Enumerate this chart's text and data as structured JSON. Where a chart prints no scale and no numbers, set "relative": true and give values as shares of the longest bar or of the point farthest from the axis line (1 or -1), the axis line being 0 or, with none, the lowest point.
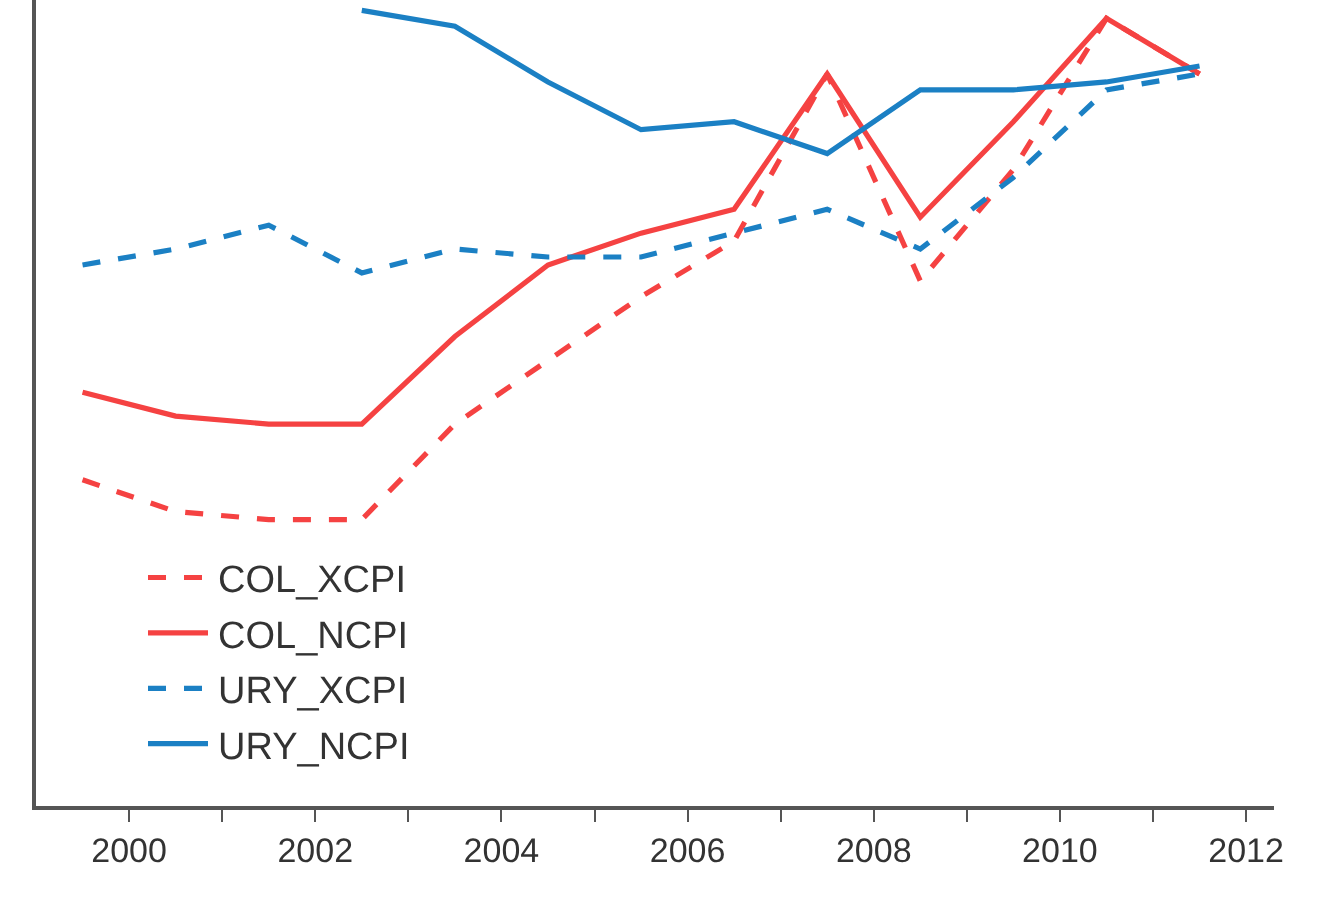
{
  "chart_data": {
    "type": "line",
    "relative": true,
    "x": [
      1999.5,
      2000.5,
      2001.5,
      2002.5,
      2003.5,
      2004.5,
      2005.5,
      2006.5,
      2007.5,
      2008.5,
      2009.5,
      2010.5,
      2011.5
    ],
    "xlim": [
      1999,
      2012.3
    ],
    "xticks": [
      2000,
      {
        "value": 2001,
        "label": null
      },
      2002,
      {
        "value": 2003,
        "label": null
      },
      2004,
      {
        "value": 2005,
        "label": null
      },
      2006,
      {
        "value": 2007,
        "label": null
      },
      2008,
      {
        "value": 2009,
        "label": null
      },
      2010,
      {
        "value": 2011,
        "label": null
      },
      2012
    ],
    "grid": false,
    "legend": "bottom",
    "marker": "none",
    "tick_labels": "x",
    "series": [
      {
        "name": "COL_XCPI",
        "color": "#f54242",
        "line_style": "dashed",
        "values": [
          0.41,
          0.37,
          0.36,
          0.36,
          0.48,
          0.56,
          0.64,
          0.71,
          0.92,
          0.66,
          0.8,
          0.99,
          0.92
        ]
      },
      {
        "name": "COL_NCPI",
        "color": "#f54242",
        "line_style": "solid",
        "values": [
          0.52,
          0.49,
          0.48,
          0.48,
          0.59,
          0.68,
          0.72,
          0.75,
          0.92,
          0.74,
          0.86,
          0.99,
          0.92
        ]
      },
      {
        "name": "URY_XCPI",
        "color": "#1b80c4",
        "line_style": "dashed",
        "values": [
          0.68,
          0.7,
          0.73,
          0.67,
          0.7,
          0.69,
          0.69,
          0.72,
          0.75,
          0.7,
          0.79,
          0.9,
          0.92
        ]
      },
      {
        "name": "URY_NCPI",
        "color": "#1b80c4",
        "line_style": "solid",
        "values": [
          null,
          null,
          null,
          1.0,
          0.98,
          0.91,
          0.85,
          0.86,
          0.82,
          0.9,
          0.9,
          0.91,
          0.93
        ]
      }
    ]
  }
}
